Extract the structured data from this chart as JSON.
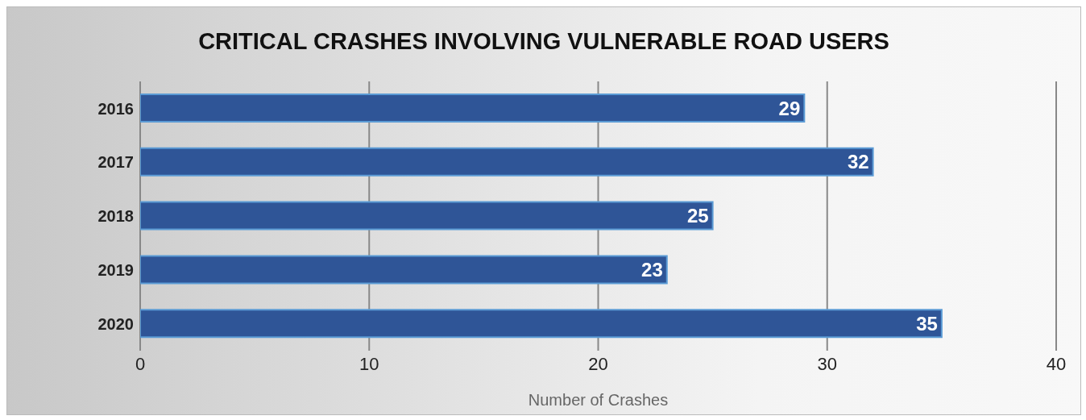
{
  "chart_data": {
    "type": "bar",
    "orientation": "horizontal",
    "title": "CRITICAL CRASHES INVOLVING VULNERABLE ROAD USERS",
    "xlabel": "Number of Crashes",
    "categories": [
      "2016",
      "2017",
      "2018",
      "2019",
      "2020"
    ],
    "values": [
      29,
      32,
      25,
      23,
      35
    ],
    "color": "#2f5597",
    "xlim": [
      0,
      40
    ],
    "xticks": [
      0,
      10,
      20,
      30,
      40
    ],
    "grid": "x",
    "data_labels": true
  }
}
